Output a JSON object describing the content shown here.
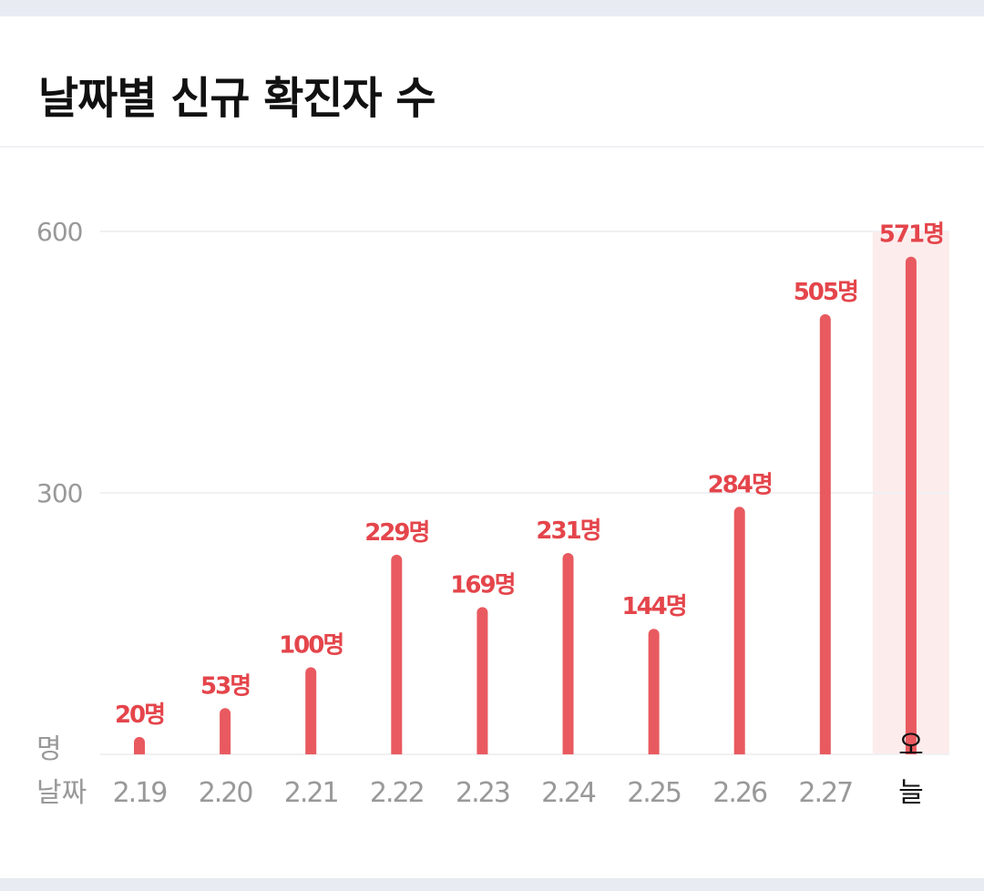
{
  "title": "날짜별 신규 확진자 수",
  "chart_data": {
    "type": "bar",
    "title": "날짜별 신규 확진자 수",
    "categories": [
      "2.19",
      "2.20",
      "2.21",
      "2.22",
      "2.23",
      "2.24",
      "2.25",
      "2.26",
      "2.27",
      "오늘"
    ],
    "values": [
      20,
      53,
      100,
      229,
      169,
      231,
      144,
      284,
      505,
      571
    ],
    "value_suffix": "명",
    "ylabel": "명",
    "xlabel": "날짜",
    "yticks": [
      600,
      300
    ],
    "ylim": [
      0,
      600
    ],
    "highlight_category": "오늘",
    "grid": true
  },
  "colors": {
    "bar": "#e85a5f",
    "value_label": "#e4454b",
    "highlight_bg": "#fcecec",
    "axis_text": "#999999",
    "gridline": "#f0f0f3",
    "today_label": "#111111"
  }
}
